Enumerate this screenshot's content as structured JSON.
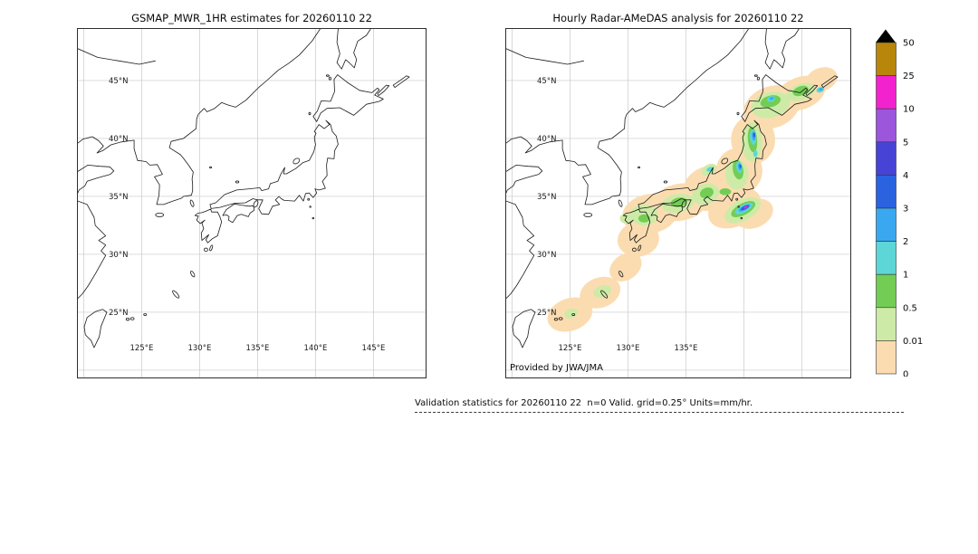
{
  "panels": [
    {
      "title": "GSMAP_MWR_1HR estimates for 20260110 22",
      "lat_ticks": [
        {
          "label": "45°N",
          "lat": 45
        },
        {
          "label": "40°N",
          "lat": 40
        },
        {
          "label": "35°N",
          "lat": 35
        },
        {
          "label": "30°N",
          "lat": 30
        },
        {
          "label": "25°N",
          "lat": 25
        }
      ],
      "lon_ticks": [
        {
          "label": "125°E",
          "lon": 125
        },
        {
          "label": "130°E",
          "lon": 130
        },
        {
          "label": "135°E",
          "lon": 135
        },
        {
          "label": "140°E",
          "lon": 140
        },
        {
          "label": "145°E",
          "lon": 145
        }
      ]
    },
    {
      "title": "Hourly Radar-AMeDAS analysis for 20260110 22",
      "credit": "Provided by JWA/JMA",
      "lat_ticks": [
        {
          "label": "45°N",
          "lat": 45
        },
        {
          "label": "40°N",
          "lat": 40
        },
        {
          "label": "35°N",
          "lat": 35
        },
        {
          "label": "30°N",
          "lat": 30
        },
        {
          "label": "25°N",
          "lat": 25
        }
      ],
      "lon_ticks": [
        {
          "label": "125°E",
          "lon": 125
        },
        {
          "label": "130°E",
          "lon": 130
        },
        {
          "label": "135°E",
          "lon": 135
        }
      ]
    }
  ],
  "colorbar": {
    "tick_labels_top_to_bottom": [
      "50",
      "25",
      "10",
      "5",
      "4",
      "3",
      "2",
      "1",
      "0.5",
      "0.01",
      "0"
    ],
    "overflow_marker": "black-up-arrow",
    "segment_colors_low_to_high": [
      "#fbdcb0",
      "#cdeba6",
      "#73cd54",
      "#5cd6d6",
      "#3aa8f0",
      "#2a62e0",
      "#4743d6",
      "#9c56dc",
      "#f322cf",
      "#b8860b"
    ]
  },
  "caption": "Validation statistics for 20260110 22  n=0 Valid. grid=0.25° Units=mm/hr.",
  "chart_data": {
    "type": "heatmap",
    "units": "mm/hr",
    "grid_resolution_deg": 0.25,
    "valid_sample_count": 0,
    "lon_range": [
      119.5,
      149.5
    ],
    "lat_range": [
      19.4,
      49.45
    ],
    "grid_lon_lines": [
      120,
      125,
      130,
      135,
      140,
      145
    ],
    "grid_lat_lines": [
      20,
      25,
      30,
      35,
      40,
      45
    ],
    "levels_mm_per_hr": [
      0,
      0.01,
      0.5,
      1,
      2,
      3,
      4,
      5,
      10,
      25,
      50
    ],
    "maps": [
      {
        "name": "GSMAP_MWR_1HR estimates",
        "datetime": "20260110 22",
        "precipitation": "none shown (no overpass, n=0)"
      },
      {
        "name": "Hourly Radar-AMeDAS analysis",
        "datetime": "20260110 22",
        "blob_format": [
          "lon_deg_E",
          "lat_deg_N",
          "rx_deg",
          "ry_deg",
          "rotation_deg",
          "intensity_color_index_low_to_high"
        ],
        "precip_blobs": [
          [
            125.0,
            24.8,
            2.0,
            1.4,
            -20,
            0
          ],
          [
            127.6,
            26.7,
            1.8,
            1.3,
            -20,
            0
          ],
          [
            129.8,
            28.9,
            1.5,
            1.1,
            -35,
            0
          ],
          [
            130.9,
            31.3,
            1.8,
            1.5,
            -10,
            0
          ],
          [
            131.9,
            33.5,
            2.4,
            1.7,
            -10,
            0
          ],
          [
            134.5,
            34.5,
            2.4,
            1.6,
            -10,
            0
          ],
          [
            137.0,
            35.7,
            2.3,
            1.9,
            -20,
            0
          ],
          [
            139.2,
            34.0,
            2.4,
            1.6,
            -25,
            0
          ],
          [
            140.9,
            33.5,
            1.7,
            1.2,
            -25,
            0
          ],
          [
            139.6,
            37.2,
            2.0,
            2.0,
            0,
            0
          ],
          [
            140.8,
            39.9,
            1.9,
            2.1,
            0,
            0
          ],
          [
            142.4,
            42.7,
            2.5,
            1.8,
            -20,
            0
          ],
          [
            144.9,
            43.9,
            2.2,
            1.4,
            -20,
            0
          ],
          [
            146.7,
            45.1,
            1.4,
            1.0,
            -20,
            0
          ],
          [
            127.8,
            26.8,
            0.8,
            0.5,
            -20,
            1
          ],
          [
            125.1,
            24.9,
            0.6,
            0.4,
            -20,
            1
          ],
          [
            131.4,
            33.4,
            1.2,
            0.9,
            0,
            1
          ],
          [
            134.3,
            34.4,
            1.4,
            0.8,
            -10,
            1
          ],
          [
            136.7,
            35.2,
            1.2,
            0.9,
            -20,
            1
          ],
          [
            139.9,
            33.8,
            1.7,
            0.9,
            -28,
            1
          ],
          [
            139.4,
            36.9,
            1.0,
            1.3,
            0,
            1
          ],
          [
            140.7,
            39.7,
            0.9,
            1.7,
            0,
            1
          ],
          [
            142.3,
            42.9,
            1.7,
            1.1,
            -15,
            1
          ],
          [
            144.9,
            44.0,
            1.3,
            0.7,
            -20,
            1
          ],
          [
            129.9,
            33.1,
            0.6,
            0.45,
            0,
            1
          ],
          [
            137.0,
            37.3,
            0.7,
            0.45,
            -30,
            1
          ],
          [
            134.4,
            34.5,
            0.7,
            0.4,
            -10,
            2
          ],
          [
            136.8,
            35.3,
            0.6,
            0.45,
            -20,
            2
          ],
          [
            139.95,
            33.9,
            1.15,
            0.5,
            -28,
            2
          ],
          [
            139.5,
            37.3,
            0.45,
            0.85,
            -10,
            2
          ],
          [
            140.75,
            39.9,
            0.4,
            1.1,
            -5,
            2
          ],
          [
            142.3,
            43.2,
            0.9,
            0.5,
            -15,
            2
          ],
          [
            144.9,
            44.1,
            0.7,
            0.4,
            -20,
            2
          ],
          [
            138.4,
            35.4,
            0.5,
            0.3,
            0,
            2
          ],
          [
            131.4,
            33.1,
            0.5,
            0.35,
            0,
            2
          ],
          [
            140.0,
            33.95,
            0.85,
            0.33,
            -28,
            3
          ],
          [
            139.6,
            37.5,
            0.25,
            0.5,
            -10,
            3
          ],
          [
            140.8,
            40.1,
            0.28,
            0.65,
            -5,
            3
          ],
          [
            142.35,
            43.4,
            0.35,
            0.25,
            -15,
            3
          ],
          [
            137.05,
            37.35,
            0.3,
            0.17,
            -30,
            3
          ],
          [
            146.6,
            44.2,
            0.35,
            0.22,
            -20,
            3
          ],
          [
            141.0,
            38.7,
            0.18,
            0.3,
            0,
            3
          ],
          [
            140.05,
            34.0,
            0.55,
            0.2,
            -28,
            4
          ],
          [
            139.65,
            37.55,
            0.15,
            0.3,
            -10,
            4
          ],
          [
            140.85,
            40.2,
            0.16,
            0.38,
            -5,
            4
          ],
          [
            142.4,
            43.45,
            0.18,
            0.12,
            -15,
            4
          ],
          [
            146.65,
            44.25,
            0.17,
            0.11,
            -20,
            4
          ],
          [
            140.1,
            34.03,
            0.4,
            0.15,
            -28,
            5
          ],
          [
            140.9,
            40.3,
            0.1,
            0.22,
            -5,
            5
          ],
          [
            139.7,
            37.6,
            0.09,
            0.16,
            -10,
            5
          ],
          [
            140.12,
            34.05,
            0.28,
            0.11,
            -28,
            6
          ],
          [
            140.15,
            34.07,
            0.21,
            0.085,
            -28,
            7
          ],
          [
            140.17,
            34.08,
            0.14,
            0.06,
            -28,
            8
          ]
        ]
      }
    ]
  }
}
